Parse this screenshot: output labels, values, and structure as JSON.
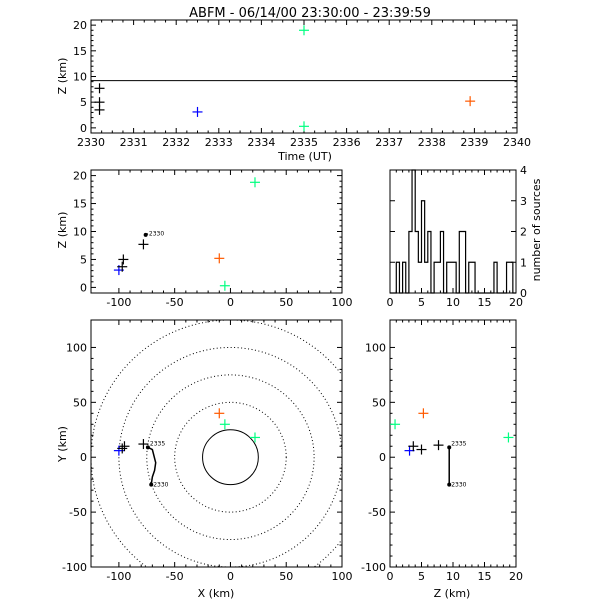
{
  "chart_data": [
    {
      "id": "time_height",
      "type": "scatter",
      "title": "ABFM - 06/14/00 23:30:00 - 23:39:59",
      "xlabel": "Time (UT)",
      "ylabel": "Z (km)",
      "xlim": [
        2330,
        2340
      ],
      "ylim": [
        -1,
        21
      ],
      "xticks": [
        2330,
        2331,
        2332,
        2333,
        2334,
        2335,
        2336,
        2337,
        2338,
        2339,
        2340
      ],
      "yticks": [
        0,
        5,
        10,
        15,
        20
      ],
      "hline_y": 9.2,
      "points": [
        {
          "x": 2330.2,
          "y": 7.7,
          "color": "#000000"
        },
        {
          "x": 2330.2,
          "y": 5.0,
          "color": "#000000"
        },
        {
          "x": 2330.2,
          "y": 3.5,
          "color": "#000000"
        },
        {
          "x": 2332.5,
          "y": 3.1,
          "color": "#0000ff"
        },
        {
          "x": 2335.0,
          "y": 19.0,
          "color": "#00ff80"
        },
        {
          "x": 2335.0,
          "y": 0.3,
          "color": "#00ff80"
        },
        {
          "x": 2338.9,
          "y": 5.2,
          "color": "#ff5a00"
        }
      ]
    },
    {
      "id": "xz",
      "type": "scatter",
      "xlabel": "",
      "ylabel": "Z (km)",
      "xlim": [
        -125,
        100
      ],
      "ylim": [
        -1,
        21
      ],
      "xticks": [
        -100,
        -50,
        0,
        50,
        100
      ],
      "yticks": [
        0,
        5,
        10,
        15,
        20
      ],
      "points": [
        {
          "x": -100,
          "y": 3.1,
          "color": "#0000ff"
        },
        {
          "x": -97,
          "y": 3.7,
          "color": "#000000"
        },
        {
          "x": -96,
          "y": 5.0,
          "color": "#000000"
        },
        {
          "x": -78,
          "y": 7.7,
          "color": "#000000"
        },
        {
          "x": -10,
          "y": 5.2,
          "color": "#ff5a00"
        },
        {
          "x": -5,
          "y": 0.3,
          "color": "#00ff80"
        },
        {
          "x": 22,
          "y": 18.8,
          "color": "#00ff80"
        }
      ],
      "track": {
        "from": [
          -76,
          9.4
        ],
        "to": [
          -74,
          9.6
        ],
        "label": "2330"
      }
    },
    {
      "id": "histogram",
      "type": "bar",
      "xlabel": "",
      "ylabel": "number of sources",
      "xlim": [
        0,
        20
      ],
      "ylim": [
        0,
        4
      ],
      "xticks": [
        0,
        5,
        10,
        15,
        20
      ],
      "yticks": [
        0,
        1,
        2,
        3,
        4
      ],
      "bin_width": 0.5,
      "counts": [
        0,
        0,
        1,
        0,
        1,
        0,
        2,
        4,
        2,
        1,
        3,
        1,
        2,
        0,
        1,
        1,
        2,
        0,
        1,
        1,
        1,
        0,
        2,
        2,
        0,
        1,
        1,
        0,
        0,
        0,
        0,
        0,
        0,
        1,
        0,
        0,
        0,
        1,
        1,
        0
      ]
    },
    {
      "id": "plan_view",
      "type": "scatter",
      "xlabel": "X (km)",
      "ylabel": "Y (km)",
      "xlim": [
        -125,
        100
      ],
      "ylim": [
        -100,
        125
      ],
      "xticks": [
        -100,
        -50,
        0,
        50,
        100
      ],
      "yticks": [
        -100,
        -50,
        0,
        50,
        100
      ],
      "range_rings": [
        25,
        50,
        75,
        100,
        125
      ],
      "points": [
        {
          "x": -100,
          "y": 6,
          "color": "#0000ff"
        },
        {
          "x": -97,
          "y": 8,
          "color": "#000000"
        },
        {
          "x": -95,
          "y": 10,
          "color": "#000000"
        },
        {
          "x": -78,
          "y": 12,
          "color": "#000000"
        },
        {
          "x": -10,
          "y": 40,
          "color": "#ff5a00"
        },
        {
          "x": -5,
          "y": 30,
          "color": "#00ff80"
        },
        {
          "x": 22,
          "y": 18,
          "color": "#00ff80"
        }
      ],
      "track": {
        "path": [
          [
            -74,
            9
          ],
          [
            -70,
            7
          ],
          [
            -67,
            -5
          ],
          [
            -68,
            -12
          ],
          [
            -70,
            -18
          ],
          [
            -71,
            -25
          ]
        ],
        "start_label": "2335",
        "end_label": "2330"
      }
    },
    {
      "id": "zy",
      "type": "scatter",
      "xlabel": "Z (km)",
      "ylabel": "",
      "xlim": [
        0,
        20
      ],
      "ylim": [
        -100,
        125
      ],
      "xticks": [
        0,
        5,
        10,
        15,
        20
      ],
      "yticks": [
        -100,
        -50,
        0,
        50,
        100
      ],
      "points": [
        {
          "x": 0.8,
          "y": 30,
          "color": "#00ff80"
        },
        {
          "x": 3.1,
          "y": 6,
          "color": "#0000ff"
        },
        {
          "x": 3.7,
          "y": 10,
          "color": "#000000"
        },
        {
          "x": 5.0,
          "y": 7,
          "color": "#000000"
        },
        {
          "x": 5.3,
          "y": 40,
          "color": "#ff5a00"
        },
        {
          "x": 7.7,
          "y": 11,
          "color": "#000000"
        },
        {
          "x": 18.8,
          "y": 18,
          "color": "#00ff80"
        }
      ],
      "track": {
        "from": [
          9.4,
          9
        ],
        "to": [
          9.4,
          -25
        ],
        "start_label": "2335",
        "end_label": "2330"
      }
    }
  ]
}
